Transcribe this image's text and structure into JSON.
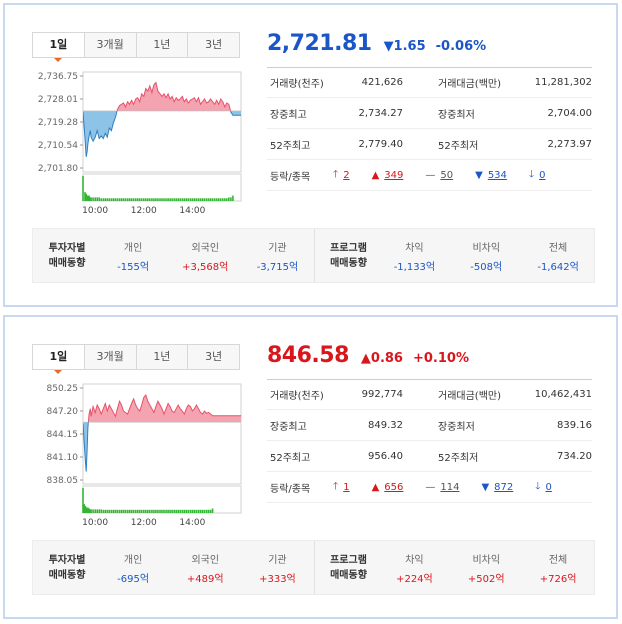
{
  "panels": [
    {
      "tabs": [
        "1일",
        "3개월",
        "1년",
        "3년"
      ],
      "price": "2,721.81",
      "change": "▼1.65",
      "change_pct": "-0.06%",
      "direction": "down",
      "stats": {
        "volume_label": "거래량(천주)",
        "volume": "421,626",
        "amount_label": "거래대금(백만)",
        "amount": "11,281,302",
        "high_label": "장중최고",
        "high": "2,734.27",
        "low_label": "장중최저",
        "low": "2,704.00",
        "w52_high_label": "52주최고",
        "w52_high": "2,779.40",
        "w52_low_label": "52주최저",
        "w52_low": "2,273.97",
        "breadth_label": "등락/종목",
        "upper_limit": "2",
        "rising": "349",
        "unchanged": "50",
        "falling": "534",
        "lower_limit": "0"
      },
      "trading": {
        "title1": "투자자별",
        "title2": "매매동향",
        "individual_label": "개인",
        "individual": "-155억",
        "foreign_label": "외국인",
        "foreign": "+3,568억",
        "institution_label": "기관",
        "institution": "-3,715억",
        "program_title1": "프로그램",
        "program_title2": "매매동향",
        "arb_label": "차익",
        "arb": "-1,133억",
        "nonarb_label": "비차익",
        "nonarb": "-508억",
        "total_label": "전체",
        "total": "-1,642억"
      },
      "chart_data": {
        "type": "area",
        "yticks": [
          "2,736.75",
          "2,728.01",
          "2,719.28",
          "2,710.54",
          "2,701.80"
        ],
        "ylim": [
          2701.8,
          2736.75
        ],
        "reference": 2723.46,
        "xticks": [
          "10:00",
          "12:00",
          "14:00"
        ],
        "x_minutes": [
          0,
          5,
          8,
          10,
          12,
          15,
          18,
          20,
          25,
          30,
          35,
          40,
          45,
          50,
          55,
          60,
          65,
          70,
          75,
          80,
          85,
          90,
          95,
          100,
          105,
          110,
          115,
          120,
          125,
          130,
          135,
          140,
          145,
          150,
          155,
          160,
          165,
          170,
          175,
          180,
          185,
          190,
          195,
          200,
          205,
          210,
          215,
          220,
          225,
          230,
          235,
          240,
          245,
          250,
          255,
          260,
          265,
          270,
          275,
          280,
          285,
          290,
          295,
          300,
          305,
          310,
          315,
          320,
          325,
          330,
          335,
          340,
          345,
          350,
          355,
          360,
          365,
          370,
          375,
          380,
          385,
          390
        ],
        "values": [
          2723.0,
          2713.0,
          2706.0,
          2708.0,
          2711.0,
          2714.0,
          2716.0,
          2713.5,
          2712.0,
          2713.5,
          2716.0,
          2713.0,
          2714.0,
          2713.0,
          2715.0,
          2713.5,
          2717.0,
          2716.0,
          2719.0,
          2721.0,
          2724.0,
          2725.5,
          2726.0,
          2726.5,
          2725.0,
          2727.0,
          2726.0,
          2727.5,
          2726.0,
          2728.0,
          2728.5,
          2727.0,
          2730.0,
          2729.0,
          2732.0,
          2731.0,
          2733.0,
          2730.5,
          2733.5,
          2734.27,
          2731.0,
          2730.0,
          2729.0,
          2730.0,
          2728.5,
          2730.0,
          2728.0,
          2729.0,
          2727.0,
          2728.5,
          2727.5,
          2728.0,
          2729.0,
          2727.0,
          2728.0,
          2726.5,
          2727.5,
          2728.0,
          2728.5,
          2727.0,
          2728.5,
          2726.0,
          2727.0,
          2728.0,
          2726.5,
          2727.0,
          2728.0,
          2727.0,
          2726.0,
          2727.5,
          2726.0,
          2728.0,
          2727.0,
          2725.0,
          2726.5,
          2726.0,
          2723.0,
          2721.81,
          2721.81,
          2721.81,
          2721.81,
          2721.81
        ],
        "volume": [
          14,
          5,
          4,
          3,
          3,
          3,
          2,
          2,
          2,
          2,
          2,
          2,
          1.5,
          1.5,
          1.5,
          1.5,
          1.5,
          1.5,
          1.5,
          1.5,
          1.5,
          1.5,
          1.5,
          1.5,
          1.5,
          1.5,
          1.5,
          1.5,
          1.5,
          1.5,
          1.5,
          1.5,
          1.5,
          1.5,
          1.5,
          1.5,
          1.5,
          1.5,
          1.5,
          1.5,
          1.5,
          1.5,
          1.5,
          1.5,
          1.5,
          1.5,
          1.5,
          1.5,
          1.5,
          1.5,
          1.5,
          1.5,
          1.5,
          1.5,
          1.5,
          1.5,
          1.5,
          1.5,
          1.5,
          1.5,
          1.5,
          1.5,
          1.5,
          1.5,
          1.5,
          1.5,
          1.5,
          1.5,
          1.5,
          1.5,
          1.5,
          1.5,
          1.5,
          1.5,
          1.5,
          2,
          2,
          3,
          0,
          0,
          0,
          0
        ],
        "up_color": "#e8506a",
        "up_fill": "#f4a3b0",
        "down_color": "#2e7fc1",
        "down_fill": "#8ec3e8",
        "volume_color": "#35b535"
      }
    },
    {
      "tabs": [
        "1일",
        "3개월",
        "1년",
        "3년"
      ],
      "price": "846.58",
      "change": "▲0.86",
      "change_pct": "+0.10%",
      "direction": "up",
      "stats": {
        "volume_label": "거래량(천주)",
        "volume": "992,774",
        "amount_label": "거래대금(백만)",
        "amount": "10,462,431",
        "high_label": "장중최고",
        "high": "849.32",
        "low_label": "장중최저",
        "low": "839.16",
        "w52_high_label": "52주최고",
        "w52_high": "956.40",
        "w52_low_label": "52주최저",
        "w52_low": "734.20",
        "breadth_label": "등락/종목",
        "upper_limit": "1",
        "rising": "656",
        "unchanged": "114",
        "falling": "872",
        "lower_limit": "0"
      },
      "trading": {
        "title1": "투자자별",
        "title2": "매매동향",
        "individual_label": "개인",
        "individual": "-695억",
        "foreign_label": "외국인",
        "foreign": "+489억",
        "institution_label": "기관",
        "institution": "+333억",
        "program_title1": "프로그램",
        "program_title2": "매매동향",
        "arb_label": "차익",
        "arb": "+224억",
        "nonarb_label": "비차익",
        "nonarb": "+502억",
        "total_label": "전체",
        "total": "+726억"
      },
      "chart_data": {
        "type": "area",
        "yticks": [
          "850.25",
          "847.20",
          "844.15",
          "841.10",
          "838.05"
        ],
        "ylim": [
          838.05,
          850.25
        ],
        "reference": 845.72,
        "xticks": [
          "10:00",
          "12:00",
          "14:00"
        ],
        "x_minutes": [
          0,
          3,
          6,
          8,
          10,
          12,
          15,
          18,
          20,
          25,
          30,
          35,
          40,
          45,
          50,
          55,
          60,
          65,
          70,
          75,
          80,
          85,
          90,
          95,
          100,
          105,
          110,
          115,
          120,
          125,
          130,
          135,
          140,
          145,
          150,
          155,
          160,
          165,
          170,
          175,
          180,
          185,
          190,
          195,
          200,
          205,
          210,
          215,
          220,
          225,
          230,
          235,
          240,
          245,
          250,
          255,
          260,
          265,
          270,
          275,
          280,
          285,
          290,
          295,
          300,
          305,
          310,
          315,
          320,
          325,
          330,
          335,
          340,
          345,
          350,
          355,
          360,
          365,
          370,
          375,
          380,
          385,
          390
        ],
        "values": [
          845.5,
          843.0,
          840.5,
          839.16,
          842.0,
          845.0,
          846.8,
          847.5,
          846.5,
          847.8,
          847.0,
          848.0,
          847.5,
          846.8,
          847.5,
          848.2,
          847.2,
          848.0,
          847.5,
          847.0,
          846.5,
          847.5,
          848.5,
          848.0,
          847.2,
          847.0,
          846.8,
          847.5,
          848.2,
          848.8,
          848.0,
          847.5,
          847.2,
          848.0,
          849.0,
          849.32,
          848.5,
          848.0,
          847.5,
          847.0,
          847.8,
          848.5,
          848.0,
          847.5,
          846.8,
          847.5,
          848.2,
          847.8,
          847.2,
          847.0,
          847.5,
          848.0,
          847.5,
          847.2,
          846.8,
          847.5,
          848.0,
          847.8,
          847.2,
          847.5,
          848.0,
          847.5,
          847.0,
          846.8,
          847.2,
          846.9,
          847.0,
          846.8,
          846.58,
          846.58,
          846.58,
          846.58,
          846.58,
          846.58,
          846.58,
          846.58,
          846.58,
          846.58,
          846.58,
          846.58,
          846.58,
          846.58,
          846.58
        ],
        "volume": [
          14,
          5,
          4,
          3,
          3,
          3,
          2.5,
          2,
          2,
          2,
          2,
          2,
          2,
          2,
          1.8,
          1.8,
          1.8,
          1.8,
          1.8,
          1.8,
          1.8,
          1.8,
          1.8,
          1.8,
          1.8,
          1.8,
          1.8,
          1.8,
          1.8,
          1.8,
          1.8,
          1.8,
          1.8,
          1.8,
          1.8,
          1.8,
          1.8,
          1.8,
          1.8,
          1.8,
          1.8,
          1.8,
          1.8,
          1.8,
          1.8,
          1.8,
          1.8,
          1.8,
          1.8,
          1.8,
          1.8,
          1.8,
          1.8,
          1.8,
          1.8,
          1.8,
          1.8,
          1.8,
          1.8,
          1.8,
          1.8,
          1.8,
          1.8,
          1.8,
          1.8,
          1.8,
          1.8,
          1.8,
          2.5,
          0,
          0,
          0,
          0,
          0,
          0,
          0,
          0,
          0,
          0,
          0,
          0,
          0,
          0
        ],
        "up_color": "#e8506a",
        "up_fill": "#f4a3b0",
        "down_color": "#2e7fc1",
        "down_fill": "#8ec3e8",
        "volume_color": "#35b535"
      }
    }
  ]
}
